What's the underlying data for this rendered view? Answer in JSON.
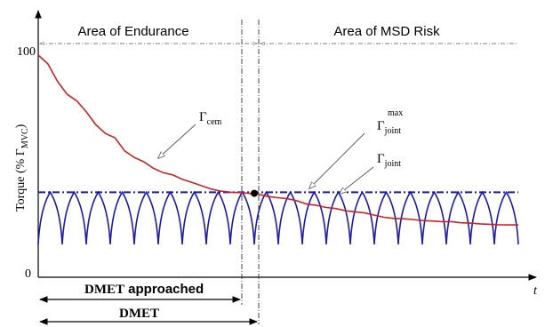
{
  "chart_data": {
    "type": "line",
    "title": "",
    "xlabel": "t",
    "ylabel_main": "Torque (% Γ",
    "ylabel_sub": "MVC",
    "ylabel_end": ")",
    "y_ticks": [
      "100",
      "0"
    ],
    "ylim": [
      0,
      100
    ],
    "xlim": [
      0,
      100
    ],
    "grid": false,
    "regions": {
      "endurance_label": "Area of Endurance",
      "msd_label": "Area of MSD Risk"
    },
    "markers": {
      "dmet_approached_label_bold": "DMET",
      "dmet_approached_label_rest": " approached",
      "dmet_label": "DMET",
      "dmet_approached_x": 41,
      "dmet_x": 45
    },
    "annotations": {
      "cem_label": "Γ",
      "cem_sub": "cem",
      "max_label": "Γ",
      "max_sup": "max",
      "max_sub": "joint",
      "joint_label": "Γ",
      "joint_sub": "joint"
    },
    "series": [
      {
        "name": "Γcem",
        "color": "#cc2222",
        "x": [
          0,
          2,
          4,
          6,
          8,
          10,
          12,
          14,
          16,
          18,
          20,
          22,
          24,
          26,
          28,
          30,
          32,
          34,
          36,
          38,
          40,
          42,
          44,
          46,
          48,
          50,
          52,
          54,
          56,
          58,
          60,
          62,
          64,
          66,
          68,
          70,
          72,
          74,
          76,
          78,
          80,
          82,
          84,
          86,
          88,
          90,
          92,
          94,
          96,
          98,
          100
        ],
        "y": [
          100,
          96,
          88,
          82,
          79,
          74,
          68,
          64,
          62,
          56,
          53,
          51,
          48,
          46,
          45,
          43,
          41.5,
          40,
          38.5,
          37.5,
          37,
          36.8,
          36.5,
          36,
          35,
          34.5,
          34,
          33,
          31.5,
          31,
          30,
          29.5,
          28.5,
          28,
          27.5,
          26.5,
          25.5,
          25,
          24.8,
          24.5,
          24,
          23.8,
          23.5,
          23.5,
          23,
          22.8,
          22.5,
          22.3,
          22.1,
          22,
          22
        ]
      },
      {
        "name": "Γjoint max",
        "color": "#1a1aaa",
        "x": [
          0,
          100
        ],
        "y": [
          37,
          37
        ]
      },
      {
        "name": "Γjoint",
        "color": "#1a1aaa",
        "cycles": 20,
        "peak": 37,
        "trough": 13
      }
    ],
    "intersection_point": {
      "x": 45,
      "y": 36.5
    }
  }
}
